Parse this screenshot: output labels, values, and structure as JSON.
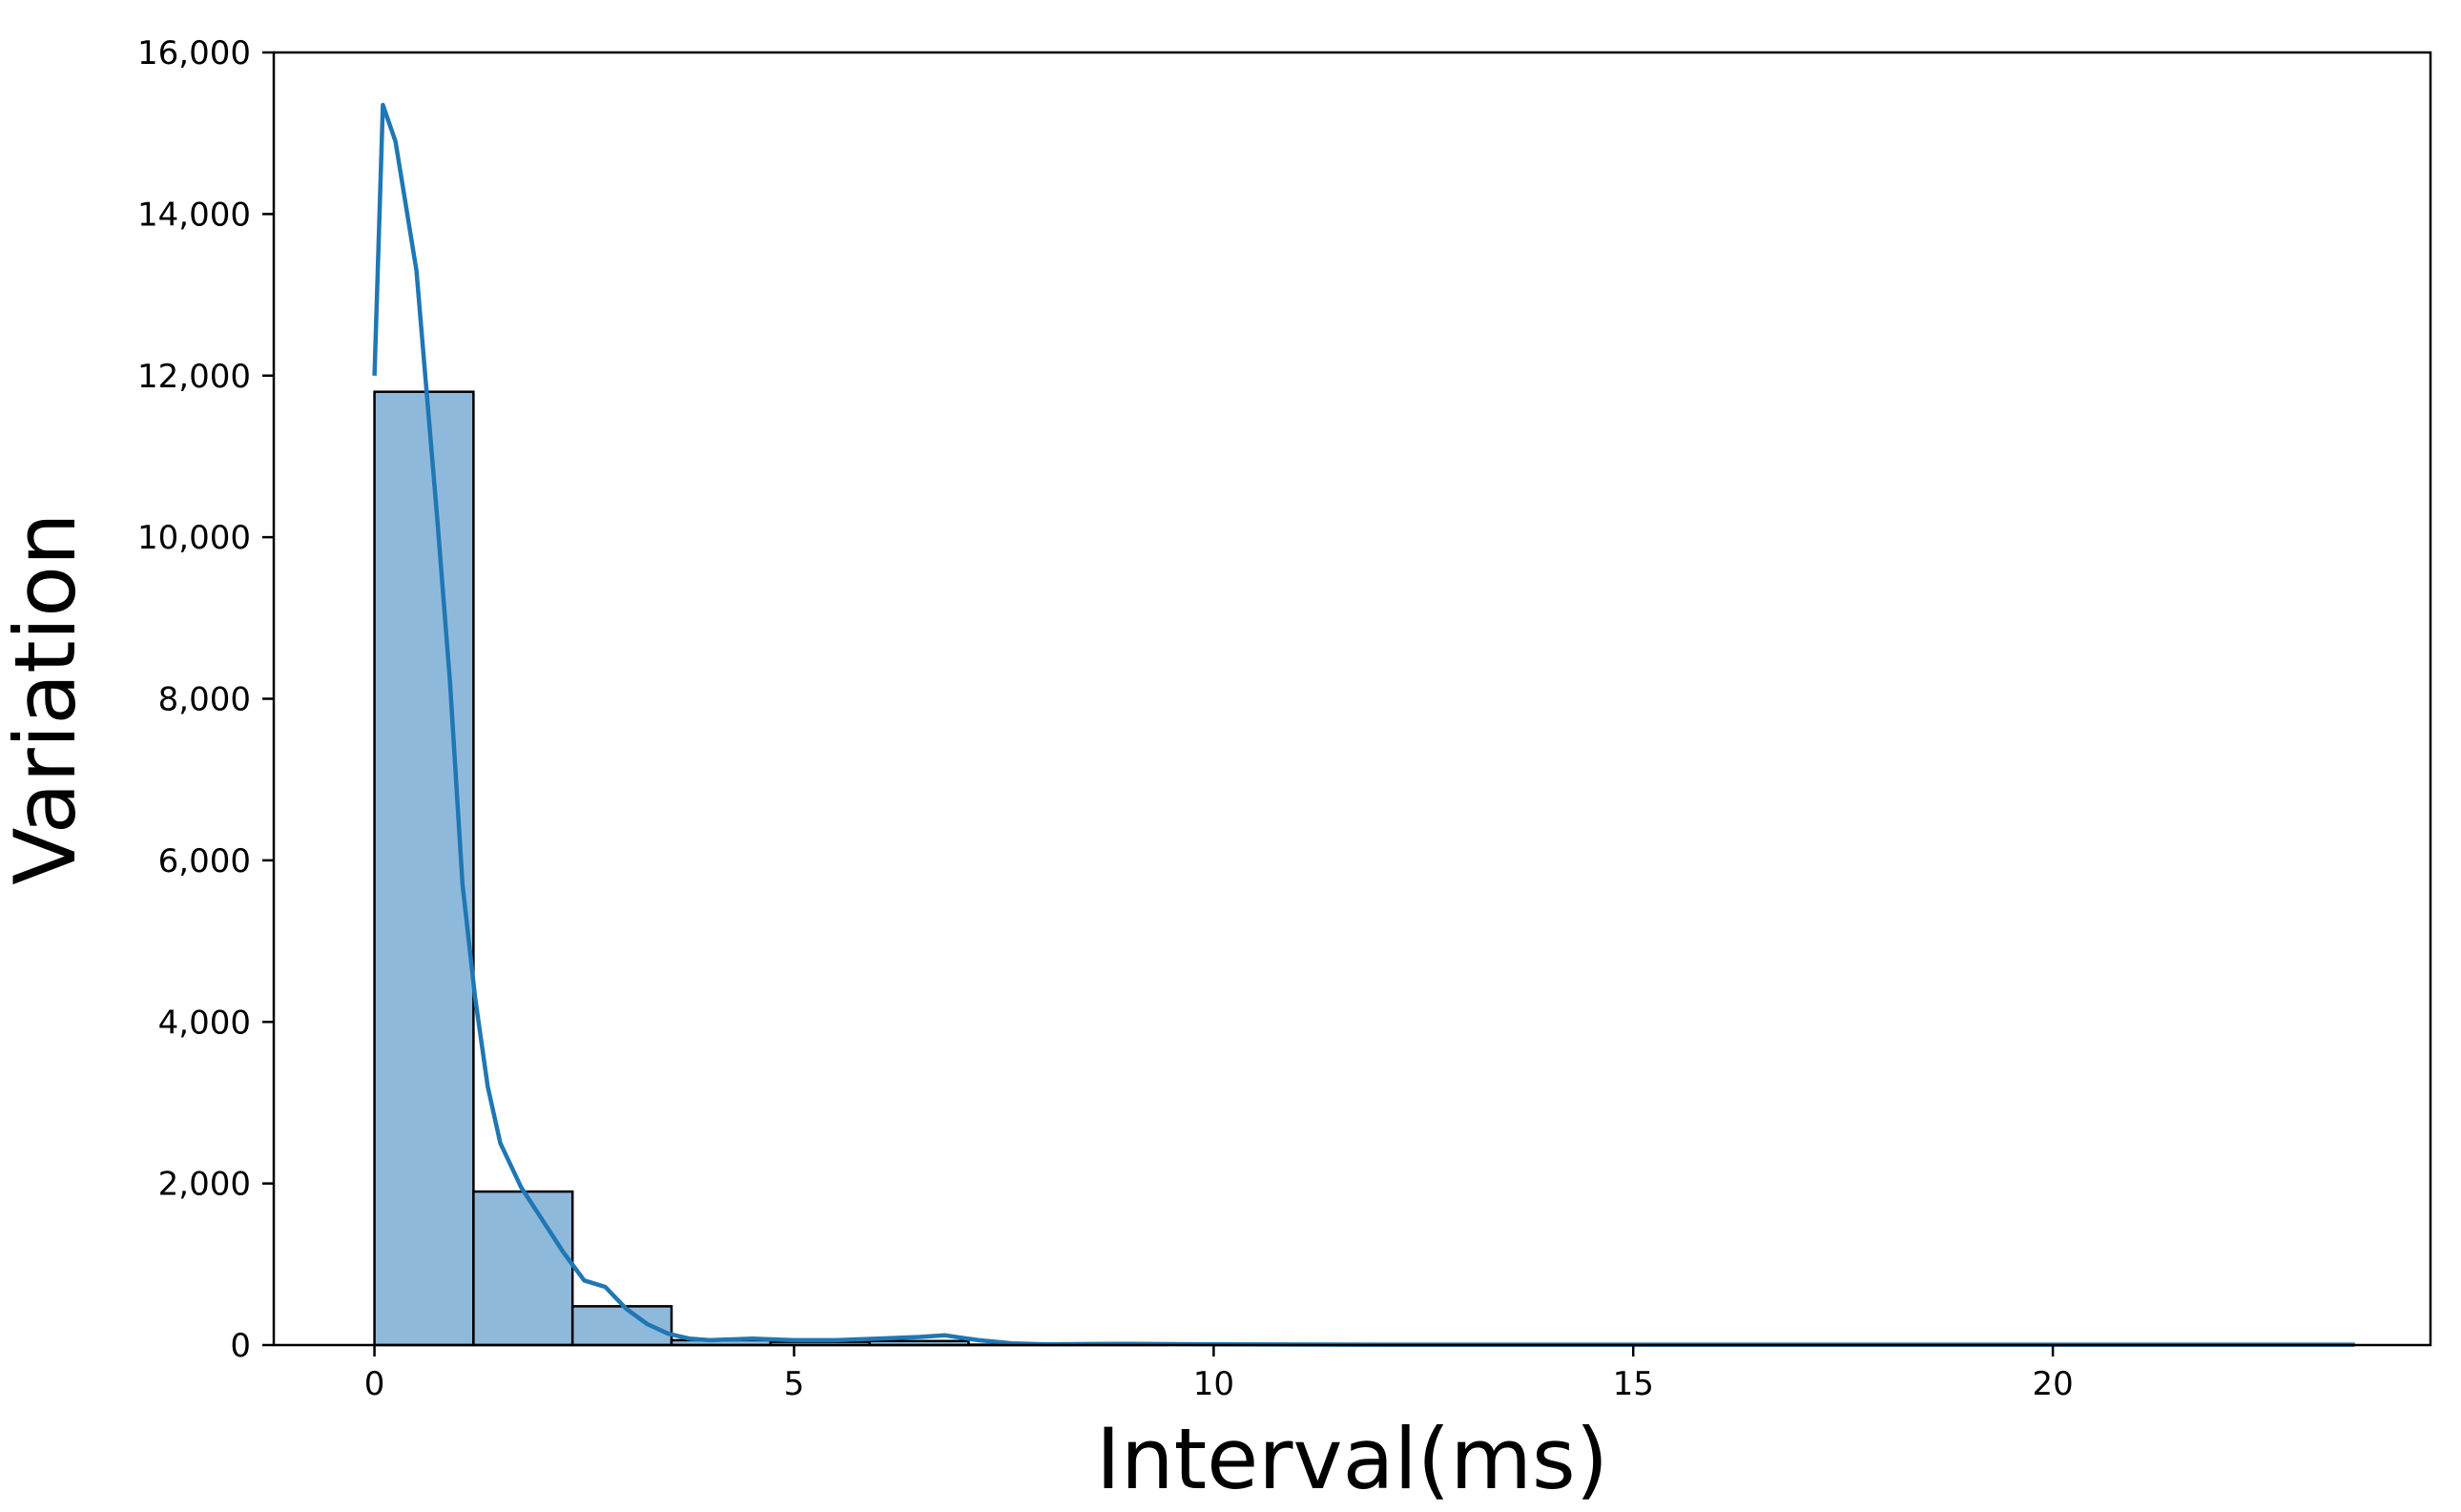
{
  "chart_data": {
    "type": "bar",
    "subtype": "histogram-with-kde",
    "title": "",
    "xlabel": "Interval(ms)",
    "ylabel": "Variation",
    "xlim": [
      -1.2,
      24.5
    ],
    "ylim": [
      0,
      16000
    ],
    "xticks": [
      0,
      5,
      10,
      15,
      20
    ],
    "xtick_labels": [
      "0",
      "5",
      "10",
      "15",
      "20"
    ],
    "yticks": [
      0,
      2000,
      4000,
      6000,
      8000,
      10000,
      12000,
      14000,
      16000
    ],
    "ytick_labels": [
      "0",
      "2,000",
      "4,000",
      "6,000",
      "8,000",
      "10,000",
      "12,000",
      "14,000",
      "16,000"
    ],
    "grid": false,
    "legend": "none",
    "bins": [
      {
        "x0": 0.0,
        "x1": 1.18,
        "count": 11800
      },
      {
        "x0": 1.18,
        "x1": 2.36,
        "count": 1900
      },
      {
        "x0": 2.36,
        "x1": 3.54,
        "count": 480
      },
      {
        "x0": 3.54,
        "x1": 4.72,
        "count": 60
      },
      {
        "x0": 4.72,
        "x1": 5.9,
        "count": 40
      },
      {
        "x0": 5.9,
        "x1": 7.08,
        "count": 50
      },
      {
        "x0": 7.08,
        "x1": 8.26,
        "count": 5
      },
      {
        "x0": 8.26,
        "x1": 9.44,
        "count": 5
      }
    ],
    "kde": {
      "x": [
        0.0,
        0.1,
        0.25,
        0.5,
        0.75,
        0.9,
        1.05,
        1.2,
        1.35,
        1.5,
        1.75,
        2.0,
        2.25,
        2.5,
        2.75,
        3.0,
        3.25,
        3.5,
        3.75,
        4.0,
        4.5,
        5.0,
        5.5,
        6.0,
        6.5,
        6.8,
        7.2,
        7.6,
        8.0,
        9.0,
        10.0,
        12.0,
        15.0,
        20.0,
        23.6
      ],
      "y": [
        12000,
        15350,
        14900,
        13300,
        10200,
        8200,
        5700,
        4300,
        3200,
        2500,
        1950,
        1550,
        1150,
        800,
        720,
        450,
        260,
        140,
        80,
        60,
        80,
        60,
        60,
        80,
        100,
        120,
        60,
        20,
        10,
        15,
        10,
        5,
        5,
        5,
        5
      ]
    },
    "colors": {
      "bar_fill": "#8fb9db",
      "bar_edge": "#000000",
      "kde_line": "#1f77b4",
      "axes": "#000000",
      "background": "#ffffff"
    }
  }
}
